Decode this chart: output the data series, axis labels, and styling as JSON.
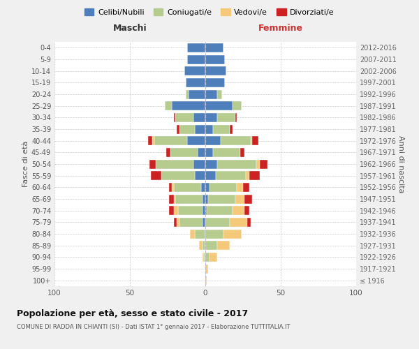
{
  "age_groups": [
    "100+",
    "95-99",
    "90-94",
    "85-89",
    "80-84",
    "75-79",
    "70-74",
    "65-69",
    "60-64",
    "55-59",
    "50-54",
    "45-49",
    "40-44",
    "35-39",
    "30-34",
    "25-29",
    "20-24",
    "15-19",
    "10-14",
    "5-9",
    "0-4"
  ],
  "birth_years": [
    "≤ 1916",
    "1917-1921",
    "1922-1926",
    "1927-1931",
    "1932-1936",
    "1937-1941",
    "1942-1946",
    "1947-1951",
    "1952-1956",
    "1957-1961",
    "1962-1966",
    "1967-1971",
    "1972-1976",
    "1977-1981",
    "1982-1986",
    "1987-1991",
    "1992-1996",
    "1997-2001",
    "2002-2006",
    "2007-2011",
    "2012-2016"
  ],
  "colors": {
    "celibe": "#4f7fba",
    "coniugato": "#b5cc8e",
    "vedovo": "#f5c97a",
    "divorziato": "#cc2222"
  },
  "males": {
    "celibe": [
      0,
      0,
      0,
      0,
      0,
      2,
      2,
      2,
      3,
      7,
      8,
      5,
      12,
      7,
      8,
      22,
      11,
      13,
      14,
      12,
      12
    ],
    "coniugato": [
      0,
      0,
      1,
      2,
      7,
      15,
      16,
      18,
      18,
      22,
      25,
      18,
      22,
      10,
      12,
      5,
      2,
      0,
      0,
      0,
      0
    ],
    "vedovo": [
      0,
      0,
      1,
      2,
      3,
      2,
      3,
      1,
      1,
      0,
      0,
      0,
      1,
      0,
      0,
      0,
      0,
      0,
      0,
      0,
      0
    ],
    "divorziato": [
      0,
      0,
      0,
      0,
      0,
      2,
      3,
      3,
      2,
      7,
      4,
      3,
      3,
      2,
      1,
      0,
      0,
      0,
      0,
      0,
      0
    ]
  },
  "females": {
    "nubile": [
      0,
      0,
      0,
      0,
      0,
      0,
      1,
      2,
      3,
      7,
      8,
      5,
      10,
      5,
      8,
      18,
      8,
      13,
      14,
      13,
      12
    ],
    "coniugata": [
      0,
      0,
      3,
      8,
      12,
      16,
      17,
      18,
      18,
      20,
      26,
      18,
      20,
      11,
      12,
      6,
      3,
      0,
      0,
      0,
      0
    ],
    "vedova": [
      1,
      2,
      5,
      8,
      12,
      12,
      8,
      6,
      4,
      2,
      2,
      0,
      1,
      0,
      0,
      0,
      0,
      0,
      0,
      0,
      0
    ],
    "divorziata": [
      0,
      0,
      0,
      0,
      0,
      2,
      3,
      5,
      4,
      7,
      5,
      3,
      4,
      2,
      1,
      0,
      0,
      0,
      0,
      0,
      0
    ]
  },
  "xlim": 100,
  "title": "Popolazione per età, sesso e stato civile - 2017",
  "subtitle": "COMUNE DI RADDA IN CHIANTI (SI) - Dati ISTAT 1° gennaio 2017 - Elaborazione TUTTITALIA.IT",
  "xlabel_left": "Maschi",
  "xlabel_right": "Femmine",
  "ylabel_left": "Fasce di età",
  "ylabel_right": "Anni di nascita",
  "legend_labels": [
    "Celibi/Nubili",
    "Coniugati/e",
    "Vedovi/e",
    "Divorziati/e"
  ],
  "bg_color": "#f0f0f0",
  "plot_bg_color": "#ffffff"
}
